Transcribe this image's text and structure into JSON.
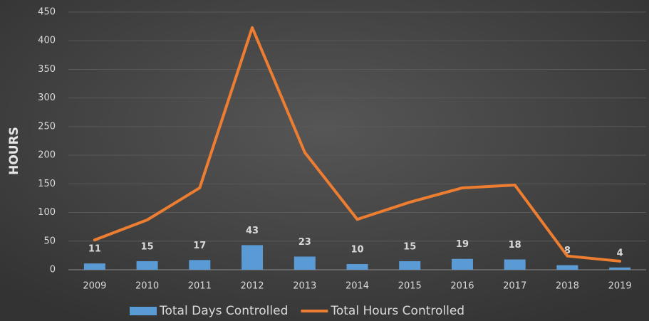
{
  "chart_data": {
    "type": "bar",
    "y_label": "HOURS",
    "categories": [
      "2009",
      "2010",
      "2011",
      "2012",
      "2013",
      "2014",
      "2015",
      "2016",
      "2017",
      "2018",
      "2019"
    ],
    "series": [
      {
        "name": "Total Days Controlled",
        "type": "bar",
        "color": "#5b9bd5",
        "values": [
          11,
          15,
          17,
          43,
          23,
          10,
          15,
          19,
          18,
          8,
          4
        ]
      },
      {
        "name": "Total Hours Controlled",
        "type": "line",
        "color": "#ed7d31",
        "values": [
          52,
          87,
          143,
          423,
          205,
          88,
          118,
          143,
          148,
          24,
          15
        ]
      }
    ],
    "ylim": [
      0,
      450
    ],
    "yticks": [
      0,
      50,
      100,
      150,
      200,
      250,
      300,
      350,
      400,
      450
    ],
    "grid": true
  }
}
